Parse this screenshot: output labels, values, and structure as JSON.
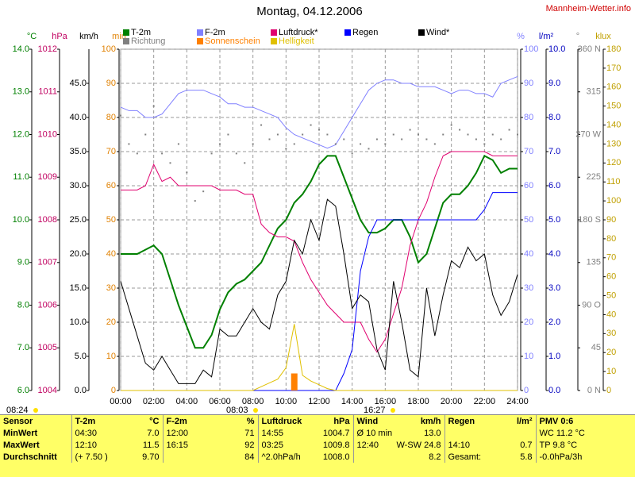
{
  "chart_data": {
    "type": "line",
    "title": "Montag, 04.12.2006",
    "source": "Mannheim-Wetter.info",
    "xlim": [
      0,
      24
    ],
    "xticks": [
      {
        "value": 0,
        "label": "00:00"
      },
      {
        "value": 2,
        "label": "02:00"
      },
      {
        "value": 4,
        "label": "04:00"
      },
      {
        "value": 6,
        "label": "06:00"
      },
      {
        "value": 8,
        "label": "08:00"
      },
      {
        "value": 10,
        "label": "10:00"
      },
      {
        "value": 12,
        "label": "12:00"
      },
      {
        "value": 14,
        "label": "14:00"
      },
      {
        "value": 16,
        "label": "16:00"
      },
      {
        "value": 18,
        "label": "18:00"
      },
      {
        "value": 20,
        "label": "20:00"
      },
      {
        "value": 22,
        "label": "22:00"
      },
      {
        "value": 24,
        "label": "24:00"
      }
    ],
    "grid": true,
    "x": [
      0,
      0.5,
      1,
      1.5,
      2,
      2.5,
      3,
      3.5,
      4,
      4.5,
      5,
      5.5,
      6,
      6.5,
      7,
      7.5,
      8,
      8.5,
      9,
      9.5,
      10,
      10.5,
      11,
      11.5,
      12,
      12.5,
      13,
      13.5,
      14,
      14.5,
      15,
      15.5,
      16,
      16.5,
      17,
      17.5,
      18,
      18.5,
      19,
      19.5,
      20,
      20.5,
      21,
      21.5,
      22,
      22.5,
      23,
      23.5,
      24
    ],
    "axes": [
      {
        "unit": "°C",
        "color": "#008000",
        "lim": [
          6,
          14
        ],
        "ticks": [
          {
            "value": 6,
            "label": "6.0"
          },
          {
            "value": 7,
            "label": "7.0"
          },
          {
            "value": 8,
            "label": "8.0"
          },
          {
            "value": 9,
            "label": "9.0"
          },
          {
            "value": 10,
            "label": "10.0"
          },
          {
            "value": 11,
            "label": "11.0"
          },
          {
            "value": 12,
            "label": "12.0"
          },
          {
            "value": 13,
            "label": "13.0"
          },
          {
            "value": 14,
            "label": "14.0"
          }
        ]
      },
      {
        "unit": "hPa",
        "color": "#c00060",
        "lim": [
          1004,
          1012
        ],
        "ticks": [
          1004,
          1005,
          1006,
          1007,
          1008,
          1009,
          1010,
          1011,
          1012
        ]
      },
      {
        "unit": "km/h",
        "color": "#000000",
        "lim": [
          0,
          50
        ],
        "ticks": [
          {
            "value": 0,
            "label": "0.0"
          },
          {
            "value": 5,
            "label": "5.0"
          },
          {
            "value": 10,
            "label": "10.0"
          },
          {
            "value": 15,
            "label": "15.0"
          },
          {
            "value": 20,
            "label": "20.0"
          },
          {
            "value": 25,
            "label": "25.0"
          },
          {
            "value": 30,
            "label": "30.0"
          },
          {
            "value": 35,
            "label": "35.0"
          },
          {
            "value": 40,
            "label": "40.0"
          },
          {
            "value": 45,
            "label": "45.0"
          }
        ]
      },
      {
        "unit": "min",
        "color": "#e08000",
        "lim": [
          0,
          100
        ],
        "ticks": [
          0,
          10,
          20,
          30,
          40,
          50,
          60,
          70,
          80,
          90,
          100
        ],
        "grid": true
      },
      {
        "unit": "%",
        "color": "#8080ff",
        "lim": [
          0,
          100
        ],
        "ticks": [
          0,
          10,
          20,
          30,
          40,
          50,
          60,
          70,
          80,
          90,
          100
        ]
      },
      {
        "unit": "l/m²",
        "color": "#0000c0",
        "lim": [
          0,
          10
        ],
        "ticks": [
          {
            "value": 0,
            "label": "0.0"
          },
          {
            "value": 1,
            "label": "1.0"
          },
          {
            "value": 2,
            "label": "2.0"
          },
          {
            "value": 3,
            "label": "3.0"
          },
          {
            "value": 4,
            "label": "4.0"
          },
          {
            "value": 5,
            "label": "5.0"
          },
          {
            "value": 6,
            "label": "6.0"
          },
          {
            "value": 7,
            "label": "7.0"
          },
          {
            "value": 8,
            "label": "8.0"
          },
          {
            "value": 9,
            "label": "9.0"
          },
          {
            "value": 10,
            "label": "10.0"
          }
        ]
      },
      {
        "unit": "°",
        "color": "#808080",
        "lim": [
          0,
          360
        ],
        "ticks": [
          {
            "value": 0,
            "label": "0 N"
          },
          45,
          {
            "value": 90,
            "label": "90 O"
          },
          135,
          {
            "value": 180,
            "label": "180 S"
          },
          225,
          {
            "value": 270,
            "label": "270 W"
          },
          315,
          {
            "value": 360,
            "label": "360 N"
          }
        ]
      },
      {
        "unit": "klux",
        "color": "#c0a000",
        "lim": [
          0,
          180
        ],
        "ticks": [
          0,
          10,
          20,
          30,
          40,
          50,
          60,
          70,
          80,
          90,
          100,
          110,
          120,
          130,
          140,
          150,
          160,
          170,
          180
        ]
      }
    ],
    "series": [
      {
        "name": "T-2m",
        "color": "#008000",
        "axis": 0,
        "kind": "line",
        "values": [
          9.2,
          9.2,
          9.2,
          9.3,
          9.4,
          9.2,
          8.6,
          8.0,
          7.5,
          7.0,
          7.0,
          7.3,
          7.9,
          8.3,
          8.5,
          8.6,
          8.8,
          9.0,
          9.4,
          9.8,
          10.0,
          10.4,
          10.6,
          10.9,
          11.3,
          11.5,
          11.5,
          11.0,
          10.5,
          10.0,
          9.7,
          9.7,
          9.8,
          10.0,
          10.0,
          9.6,
          9.0,
          9.2,
          9.8,
          10.4,
          10.6,
          10.6,
          10.8,
          11.1,
          11.5,
          11.4,
          11.1,
          11.2,
          11.2
        ]
      },
      {
        "name": "F-2m",
        "color": "#8080ff",
        "axis": 4,
        "kind": "line",
        "values": [
          83,
          82,
          82,
          80,
          80,
          81,
          84,
          87,
          88,
          88,
          88,
          87,
          86,
          84,
          84,
          83,
          83,
          82,
          81,
          80,
          77,
          75,
          74,
          73,
          72,
          71,
          72,
          76,
          80,
          84,
          88,
          90,
          91,
          91,
          90,
          90,
          89,
          89,
          89,
          88,
          87,
          88,
          88,
          87,
          87,
          86,
          90,
          91,
          92
        ]
      },
      {
        "name": "Luftdruck*",
        "color": "#e0006f",
        "axis": 1,
        "kind": "line",
        "values": [
          1008.7,
          1008.7,
          1008.7,
          1008.8,
          1009.3,
          1008.9,
          1009.0,
          1008.8,
          1008.8,
          1008.8,
          1008.8,
          1008.8,
          1008.7,
          1008.7,
          1008.7,
          1008.6,
          1008.6,
          1007.9,
          1007.7,
          1007.6,
          1007.6,
          1007.5,
          1007.0,
          1006.6,
          1006.3,
          1006.0,
          1005.8,
          1005.6,
          1005.6,
          1005.6,
          1005.2,
          1004.9,
          1005.2,
          1005.8,
          1006.4,
          1007.4,
          1008.0,
          1008.4,
          1009.0,
          1009.5,
          1009.6,
          1009.6,
          1009.6,
          1009.6,
          1009.6,
          1009.5,
          1009.5,
          1009.5,
          1009.5
        ]
      },
      {
        "name": "Regen",
        "color": "#0000ff",
        "axis": 5,
        "kind": "line",
        "values": [
          0,
          0,
          0,
          0,
          0,
          0,
          0,
          0,
          0,
          0,
          0,
          0,
          0,
          0,
          0,
          0,
          0,
          0,
          0,
          0,
          0,
          0,
          0,
          0,
          0,
          0,
          0,
          0.5,
          1.2,
          3.5,
          4.5,
          5.0,
          5.0,
          5.0,
          5.0,
          5.0,
          5.0,
          5.0,
          5.0,
          5.0,
          5.0,
          5.0,
          5.0,
          5.0,
          5.3,
          5.8,
          5.8,
          5.8,
          5.8
        ]
      },
      {
        "name": "Wind*",
        "color": "#000000",
        "axis": 2,
        "kind": "line",
        "values": [
          16,
          12,
          8,
          4,
          3,
          5,
          3,
          1,
          1,
          1,
          3,
          2,
          9,
          8,
          8,
          10,
          12,
          10,
          9,
          14,
          16,
          22,
          20,
          25,
          22,
          28,
          27,
          20,
          12,
          14,
          13,
          6,
          3,
          16,
          10,
          3,
          2,
          15,
          8,
          14,
          19,
          18,
          21,
          19,
          20,
          14,
          11,
          13,
          17
        ]
      },
      {
        "name": "Richtung",
        "color": "#808080",
        "axis": 6,
        "kind": "scatter",
        "values": [
          290,
          260,
          250,
          270,
          300,
          250,
          240,
          260,
          230,
          200,
          210,
          250,
          260,
          270,
          250,
          240,
          260,
          280,
          265,
          270,
          255,
          260,
          270,
          280,
          275,
          270,
          260,
          265,
          250,
          260,
          255,
          265,
          260,
          270,
          265,
          275,
          270,
          265,
          260,
          270,
          280,
          275,
          270,
          265,
          260,
          270,
          265,
          275,
          270
        ]
      },
      {
        "name": "Sonnenschein",
        "color": "#ff8000",
        "axis": 3,
        "kind": "bar",
        "values": [
          0,
          0,
          0,
          0,
          0,
          0,
          0,
          0,
          0,
          0,
          0,
          0,
          0,
          0,
          0,
          0,
          0,
          0,
          0,
          0,
          0,
          5,
          0,
          0,
          0,
          0,
          0,
          0,
          0,
          0,
          0,
          0,
          0,
          0,
          0,
          0,
          0,
          0,
          0,
          0,
          0,
          0,
          0,
          0,
          0,
          0,
          0,
          0,
          0
        ]
      },
      {
        "name": "Helligkeit",
        "color": "#e0c000",
        "axis": 7,
        "kind": "line",
        "values": [
          0,
          0,
          0,
          0,
          0,
          0,
          0,
          0,
          0,
          0,
          0,
          0,
          0,
          0,
          0,
          0,
          0,
          2,
          4,
          6,
          12,
          35,
          8,
          5,
          3,
          1,
          0,
          0,
          0,
          0,
          0,
          0,
          0,
          0,
          0,
          0,
          0,
          0,
          0,
          0,
          0,
          0,
          0,
          0,
          0,
          0,
          0,
          0,
          0
        ]
      }
    ],
    "annotations": [
      "08:24",
      "08:03",
      "16:27"
    ]
  },
  "table": {
    "header": [
      "Sensor",
      "T-2m",
      "°C",
      "F-2m",
      "%",
      "Luftdruck",
      "hPa",
      "Wind",
      "km/h",
      "Regen",
      "l/m²",
      "PMV 0:6"
    ],
    "rows": [
      [
        "MinWert",
        "04:30",
        "7.0",
        "12:00",
        "71",
        "14:55",
        "1004.7",
        "Ø 10 min.",
        "13.0",
        null,
        null,
        "WC 11.2 °C"
      ],
      [
        "MaxWert",
        "12:10",
        "11.5",
        "16:15",
        "92",
        "03:25",
        "1009.8",
        "12:40",
        "W-SW 24.8",
        "14:10",
        "0.7",
        "TP 9.8 °C"
      ],
      [
        "Durchschnitt",
        "(+ 7.50 )",
        "9.70",
        null,
        "84",
        "^2.0hPa/h",
        "1008.0",
        null,
        "8.2",
        "Gesamt:",
        "5.8",
        "-0.0hPa/3h"
      ]
    ]
  }
}
